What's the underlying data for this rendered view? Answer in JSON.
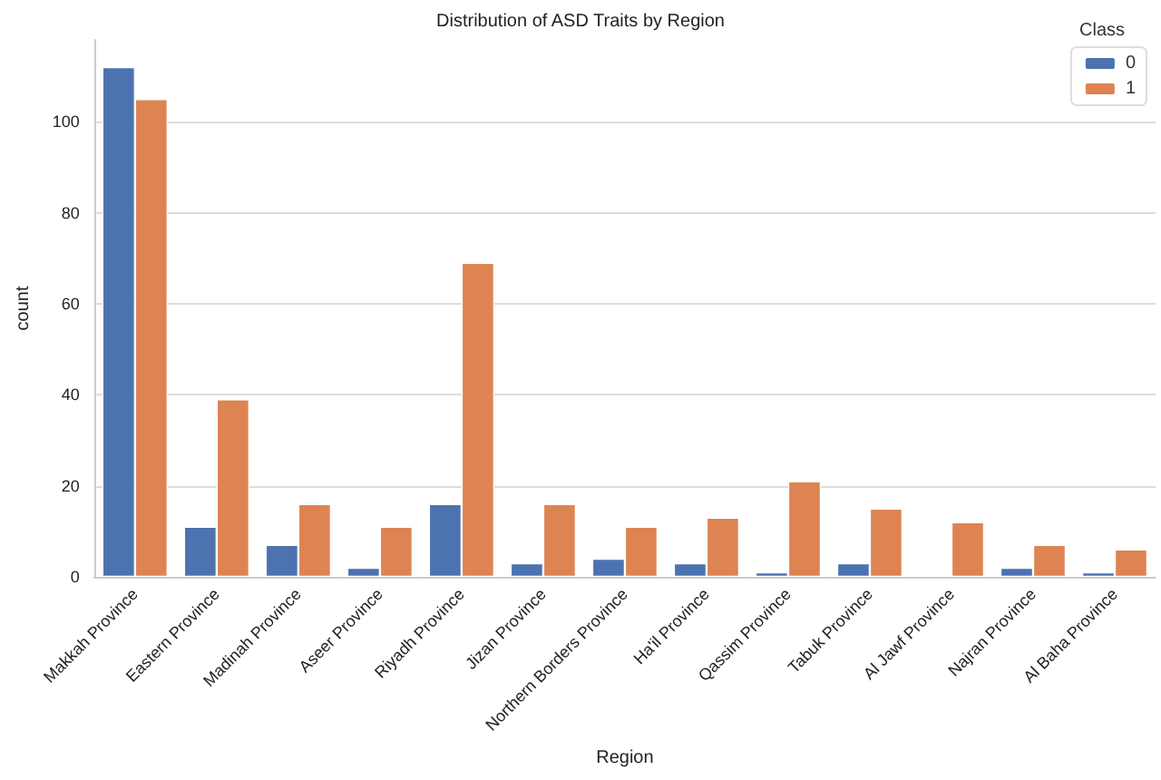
{
  "chart_data": {
    "type": "bar",
    "title": "Distribution of ASD Traits by Region",
    "xlabel": "Region",
    "ylabel": "count",
    "legend_title": "Class",
    "categories": [
      "Makkah Province",
      "Eastern Province",
      "Madinah Province",
      "Aseer Province",
      "Riyadh Province",
      "Jizan Province",
      "Northern Borders Province",
      "Ha'il Province",
      "Qassim Province",
      "Tabuk Province",
      "Al Jawf Province",
      "Najran Province",
      "Al Baha Province"
    ],
    "series": [
      {
        "name": "0",
        "color": "#4c72b0",
        "values": [
          112,
          11,
          7,
          2,
          16,
          3,
          4,
          3,
          1,
          3,
          null,
          2,
          1
        ]
      },
      {
        "name": "1",
        "color": "#dd8452",
        "values": [
          105,
          39,
          16,
          11,
          69,
          16,
          11,
          13,
          21,
          15,
          12,
          7,
          6
        ]
      }
    ],
    "ylim": [
      0,
      118
    ],
    "yticks": [
      0,
      20,
      40,
      60,
      80,
      100
    ],
    "grid": "y",
    "legend": "top right"
  }
}
